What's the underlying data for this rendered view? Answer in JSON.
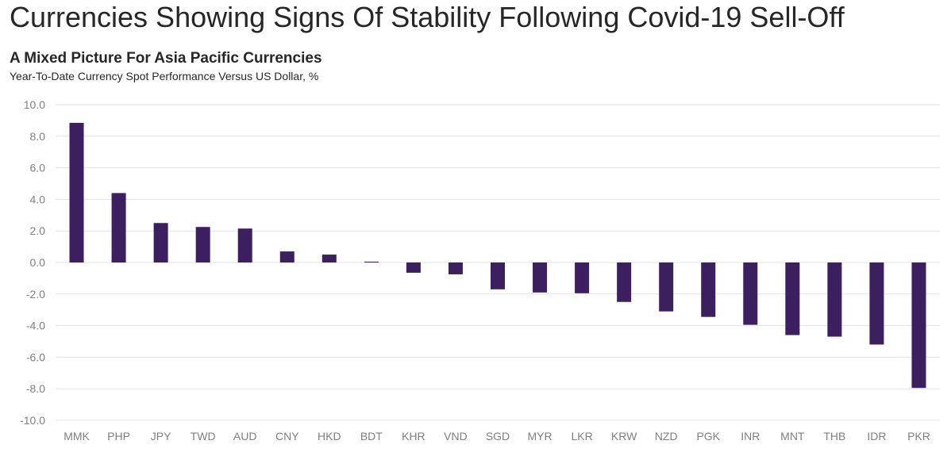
{
  "header": {
    "title": "Currencies Showing Signs Of Stability Following Covid-19 Sell-Off"
  },
  "chart_data": {
    "type": "bar",
    "title": "A Mixed Picture For Asia Pacific Currencies",
    "subtitle": "Year-To-Date Currency Spot Performance Versus US Dollar, %",
    "xlabel": "",
    "ylabel": "",
    "ylim": [
      -10,
      10
    ],
    "yticks": [
      "10.0",
      "8.0",
      "6.0",
      "4.0",
      "2.0",
      "0.0",
      "-2.0",
      "-4.0",
      "-6.0",
      "-8.0",
      "-10.0"
    ],
    "grid": true,
    "categories": [
      "MMK",
      "PHP",
      "JPY",
      "TWD",
      "AUD",
      "CNY",
      "HKD",
      "BDT",
      "KHR",
      "VND",
      "SGD",
      "MYR",
      "LKR",
      "KRW",
      "NZD",
      "PGK",
      "INR",
      "MNT",
      "THB",
      "IDR",
      "PKR"
    ],
    "values": [
      8.85,
      4.4,
      2.5,
      2.25,
      2.15,
      0.7,
      0.5,
      0.05,
      -0.65,
      -0.75,
      -1.7,
      -1.9,
      -1.95,
      -2.5,
      -3.1,
      -3.45,
      -3.95,
      -4.6,
      -4.7,
      -5.2,
      -7.95
    ],
    "colors": {
      "bar": "#3b1f5e",
      "grid": "#e3e3e3",
      "tick": "#7f7f7f"
    }
  }
}
